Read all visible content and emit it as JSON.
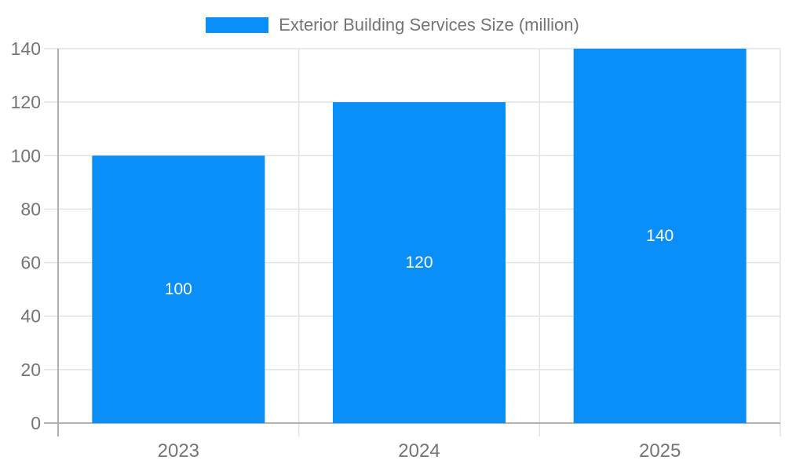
{
  "legend": {
    "label": "Exterior Building Services Size (million)",
    "swatch_color": "#0A8FF8"
  },
  "chart_data": {
    "type": "bar",
    "title": "Exterior Building Services Size (million)",
    "categories": [
      "2023",
      "2024",
      "2025"
    ],
    "values": [
      100,
      120,
      140
    ],
    "series": [
      {
        "name": "Exterior Building Services Size (million)",
        "values": [
          100,
          120,
          140
        ]
      }
    ],
    "data_labels": [
      "100",
      "120",
      "140"
    ],
    "xlabel": "",
    "ylabel": "",
    "ylim": [
      0,
      140
    ],
    "yticks": [
      0,
      20,
      40,
      60,
      80,
      100,
      120,
      140
    ],
    "grid": true,
    "legend_position": "top",
    "colors": {
      "bar": "#0A8FF8",
      "data_label": "#ffffff",
      "axis_text": "#757575",
      "grid_line": "#e3e3e3",
      "axis_line": "#b0b0b0"
    }
  }
}
